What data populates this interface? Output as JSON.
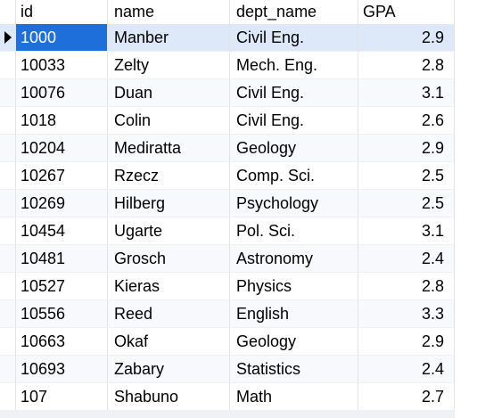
{
  "columns": [
    "id",
    "name",
    "dept_name",
    "GPA"
  ],
  "rows": [
    {
      "id": "1000",
      "name": "Manber",
      "dept_name": "Civil Eng.",
      "gpa": "2.9"
    },
    {
      "id": "10033",
      "name": "Zelty",
      "dept_name": "Mech. Eng.",
      "gpa": "2.8"
    },
    {
      "id": "10076",
      "name": "Duan",
      "dept_name": "Civil Eng.",
      "gpa": "3.1"
    },
    {
      "id": "1018",
      "name": "Colin",
      "dept_name": "Civil Eng.",
      "gpa": "2.6"
    },
    {
      "id": "10204",
      "name": "Mediratta",
      "dept_name": "Geology",
      "gpa": "2.9"
    },
    {
      "id": "10267",
      "name": "Rzecz",
      "dept_name": "Comp. Sci.",
      "gpa": "2.5"
    },
    {
      "id": "10269",
      "name": "Hilberg",
      "dept_name": "Psychology",
      "gpa": "2.5"
    },
    {
      "id": "10454",
      "name": "Ugarte",
      "dept_name": "Pol. Sci.",
      "gpa": "3.1"
    },
    {
      "id": "10481",
      "name": "Grosch",
      "dept_name": "Astronomy",
      "gpa": "2.4"
    },
    {
      "id": "10527",
      "name": "Kieras",
      "dept_name": "Physics",
      "gpa": "2.8"
    },
    {
      "id": "10556",
      "name": "Reed",
      "dept_name": "English",
      "gpa": "3.3"
    },
    {
      "id": "10663",
      "name": "Okaf",
      "dept_name": "Geology",
      "gpa": "2.9"
    },
    {
      "id": "10693",
      "name": "Zabary",
      "dept_name": "Statistics",
      "gpa": "2.4"
    },
    {
      "id": "107",
      "name": "Shabuno",
      "dept_name": "Math",
      "gpa": "2.7"
    }
  ],
  "selected_row": 0,
  "colors": {
    "selected_cell": "#1e6fd9",
    "selected_row": "#dde8f8",
    "alt_row": "#f7f9fc",
    "grid_line": "#e3e3e3"
  },
  "icons": {
    "current_row_marker": "current-row-arrow-icon"
  }
}
